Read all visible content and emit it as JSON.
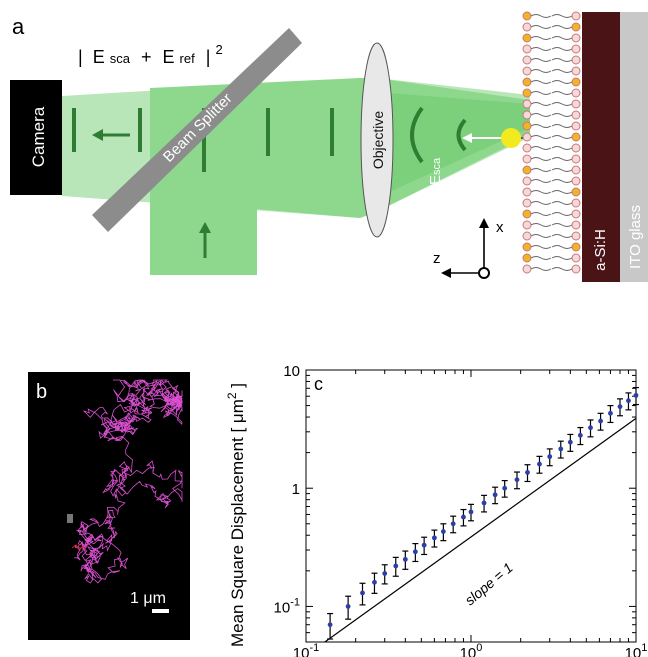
{
  "panel_a": {
    "label": "a",
    "camera_label": "Camera",
    "beam_splitter_label": "Beam Splitter",
    "objective_label": "Objective",
    "intensity_expr": "| Eₛₕₐ + Eᵣₑᶠ |²",
    "intensity_parts": {
      "bar_open": "|",
      "e1": "E",
      "e1_sub": "sca",
      "plus": "+",
      "e2": "E",
      "e2_sub": "ref",
      "bar_close": "|",
      "power": "2"
    },
    "e_sca": {
      "main": "E",
      "sub": "sca"
    },
    "e_ref": {
      "main": "E",
      "sub": "ref"
    },
    "axis_x": "x",
    "axis_z": "z",
    "asih_label": "a-Si:H",
    "ito_label": "ITO glass",
    "colors": {
      "beam": "#8ed88e",
      "beam_dark": "#2e7d32",
      "camera": "#000000",
      "splitter": "#8c8c8c",
      "asih": "#4a1416",
      "ito": "#c8c8c8",
      "particle": "#f2ea1e"
    }
  },
  "panel_b": {
    "label": "b",
    "scale_bar": "1 μm",
    "colors": {
      "background": "#000000",
      "trajectory": "#d94fd0",
      "start": "#dd2222"
    }
  },
  "panel_c": {
    "label": "c",
    "annotation": "slope = 1",
    "chart_data": {
      "type": "scatter",
      "title": "",
      "xlabel": "",
      "ylabel": "Mean Square Displacement [ μm² ]",
      "ylabel_parts": {
        "main": "Mean Square Displacement [ μm",
        "sup": "2",
        "close": " ]"
      },
      "x_scale": "log",
      "y_scale": "log",
      "xlim": [
        0.1,
        10
      ],
      "ylim": [
        0.05,
        10
      ],
      "x_ticks": [
        {
          "value": 0.1,
          "base": "10",
          "exp": "-1"
        },
        {
          "value": 1,
          "base": "10",
          "exp": "0"
        },
        {
          "value": 10,
          "base": "10",
          "exp": "1"
        }
      ],
      "y_ticks": [
        {
          "value": 0.1,
          "label": "10",
          "exp": "-1"
        },
        {
          "value": 1,
          "label": "1",
          "exp": ""
        },
        {
          "value": 10,
          "label": "10",
          "exp": ""
        }
      ],
      "series": [
        {
          "name": "",
          "color": "#2b3fa6",
          "points": [
            {
              "x": 0.14,
              "y": 0.07,
              "err": 0.017
            },
            {
              "x": 0.18,
              "y": 0.1,
              "err": 0.022
            },
            {
              "x": 0.22,
              "y": 0.13,
              "err": 0.027
            },
            {
              "x": 0.26,
              "y": 0.16,
              "err": 0.031
            },
            {
              "x": 0.3,
              "y": 0.19,
              "err": 0.035
            },
            {
              "x": 0.35,
              "y": 0.22,
              "err": 0.04
            },
            {
              "x": 0.4,
              "y": 0.25,
              "err": 0.044
            },
            {
              "x": 0.46,
              "y": 0.29,
              "err": 0.05
            },
            {
              "x": 0.52,
              "y": 0.33,
              "err": 0.055
            },
            {
              "x": 0.6,
              "y": 0.38,
              "err": 0.062
            },
            {
              "x": 0.68,
              "y": 0.43,
              "err": 0.07
            },
            {
              "x": 0.78,
              "y": 0.5,
              "err": 0.08
            },
            {
              "x": 0.9,
              "y": 0.57,
              "err": 0.09
            },
            {
              "x": 1.0,
              "y": 0.63,
              "err": 0.1
            },
            {
              "x": 1.2,
              "y": 0.75,
              "err": 0.12
            },
            {
              "x": 1.4,
              "y": 0.88,
              "err": 0.14
            },
            {
              "x": 1.6,
              "y": 1.0,
              "err": 0.16
            },
            {
              "x": 1.9,
              "y": 1.18,
              "err": 0.19
            },
            {
              "x": 2.2,
              "y": 1.36,
              "err": 0.22
            },
            {
              "x": 2.6,
              "y": 1.6,
              "err": 0.26
            },
            {
              "x": 3.0,
              "y": 1.85,
              "err": 0.3
            },
            {
              "x": 3.5,
              "y": 2.15,
              "err": 0.35
            },
            {
              "x": 4.0,
              "y": 2.45,
              "err": 0.4
            },
            {
              "x": 4.6,
              "y": 2.8,
              "err": 0.46
            },
            {
              "x": 5.3,
              "y": 3.25,
              "err": 0.53
            },
            {
              "x": 6.1,
              "y": 3.7,
              "err": 0.6
            },
            {
              "x": 7.0,
              "y": 4.3,
              "err": 0.7
            },
            {
              "x": 8.0,
              "y": 4.9,
              "err": 0.8
            },
            {
              "x": 9.0,
              "y": 5.5,
              "err": 0.9
            },
            {
              "x": 10.0,
              "y": 6.1,
              "err": 1.0
            }
          ]
        }
      ],
      "reference_line": {
        "slope": 1,
        "points": [
          [
            0.13,
            0.05
          ],
          [
            10,
            3.9
          ]
        ]
      }
    }
  }
}
